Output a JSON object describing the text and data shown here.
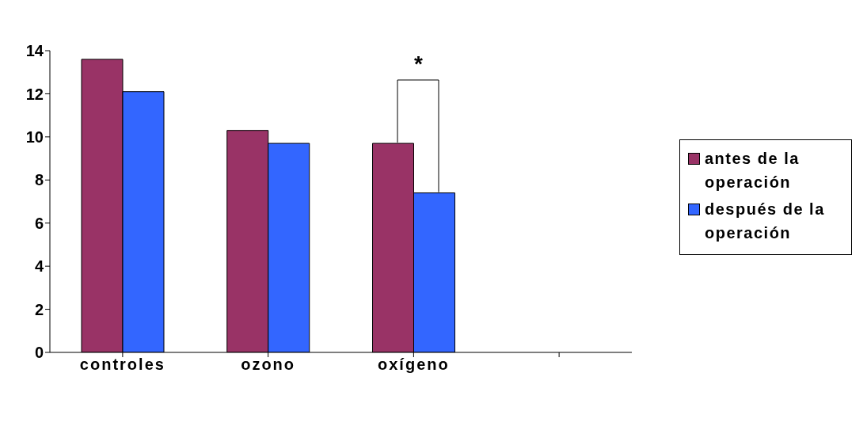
{
  "chart_data": {
    "type": "bar",
    "categories": [
      "controles",
      "ozono",
      "oxígeno",
      null
    ],
    "series": [
      {
        "name": "antes de la operación",
        "color": "#993366",
        "values": [
          13.6,
          10.3,
          9.7,
          null
        ]
      },
      {
        "name": "después de la operación",
        "color": "#3366ff",
        "values": [
          12.1,
          9.7,
          7.4,
          null
        ]
      }
    ],
    "ylim": [
      0,
      14
    ],
    "yticks": [
      0,
      2,
      4,
      6,
      8,
      10,
      12,
      14
    ],
    "grid": false,
    "legend": "right",
    "annotations": [
      "*"
    ]
  }
}
